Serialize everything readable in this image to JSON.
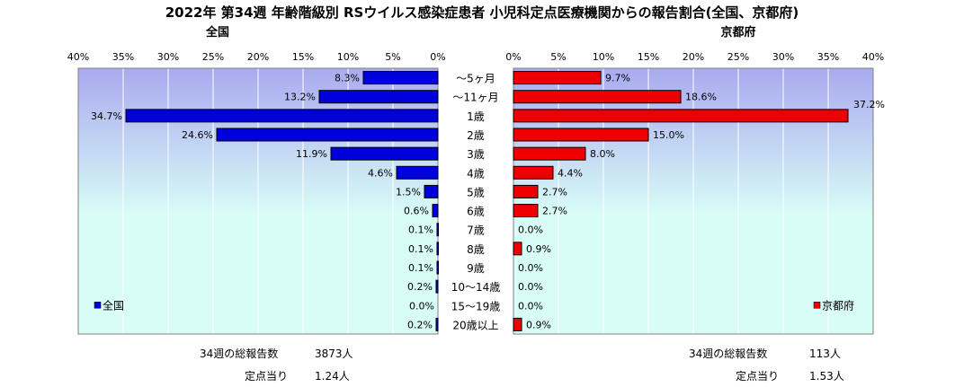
{
  "title": "2022年 第34週 年齢階級別 RSウイルス感染症患者 小児科定点医療機関からの報告割合(全国、京都府)",
  "summary": {
    "national": {
      "total_label": "34週の総報告数",
      "total_value": "3873人",
      "per_label": "定点当り",
      "per_value": "1.24人"
    },
    "kyoto": {
      "total_label": "34週の総報告数",
      "total_value": "113人",
      "per_label": "定点当り",
      "per_value": "1.53人"
    }
  },
  "colors": {
    "national": "#0000dd",
    "kyoto": "#ee0000",
    "plot_bg_top": "#aaaaf0",
    "plot_bg_bottom": "#d8fcf6"
  },
  "chart_data": {
    "type": "bar",
    "orientation": "horizontal-back-to-back",
    "categories": [
      "～5ヶ月",
      "～11ヶ月",
      "1歳",
      "2歳",
      "3歳",
      "4歳",
      "5歳",
      "6歳",
      "7歳",
      "8歳",
      "9歳",
      "10～14歳",
      "15～19歳",
      "20歳以上"
    ],
    "series": [
      {
        "name": "全国",
        "side": "left",
        "values": [
          8.3,
          13.2,
          34.7,
          24.6,
          11.9,
          4.6,
          1.5,
          0.6,
          0.1,
          0.1,
          0.1,
          0.2,
          0.0,
          0.2
        ],
        "labels": [
          "8.3%",
          "13.2%",
          "34.7%",
          "24.6%",
          "11.9%",
          "4.6%",
          "1.5%",
          "0.6%",
          "0.1%",
          "0.1%",
          "0.1%",
          "0.2%",
          "0.0%",
          "0.2%"
        ]
      },
      {
        "name": "京都府",
        "side": "right",
        "values": [
          9.7,
          18.6,
          37.2,
          15.0,
          8.0,
          4.4,
          2.7,
          2.7,
          0.0,
          0.9,
          0.0,
          0.0,
          0.0,
          0.9
        ],
        "labels": [
          "9.7%",
          "18.6%",
          "37.2%",
          "15.0%",
          "8.0%",
          "4.4%",
          "2.7%",
          "2.7%",
          "0.0%",
          "0.9%",
          "0.0%",
          "0.0%",
          "0.0%",
          "0.9%"
        ]
      }
    ],
    "left_panel_title": "全国",
    "right_panel_title": "京都府",
    "xlim": [
      0,
      40
    ],
    "x_ticks": [
      0,
      5,
      10,
      15,
      20,
      25,
      30,
      35,
      40
    ],
    "x_tick_labels": [
      "0%",
      "5%",
      "10%",
      "15%",
      "20%",
      "25%",
      "30%",
      "35%",
      "40%"
    ],
    "grid": true,
    "legend": {
      "left": "bottom-left",
      "right": "bottom-right"
    }
  }
}
